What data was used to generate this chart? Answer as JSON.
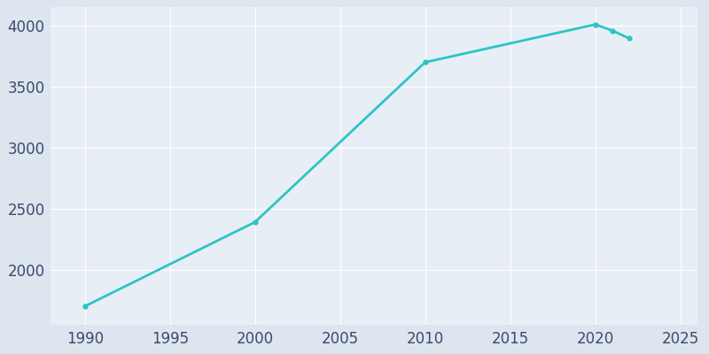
{
  "years": [
    1990,
    2000,
    2010,
    2020,
    2021,
    2022
  ],
  "population": [
    1700,
    2390,
    3700,
    4010,
    3960,
    3895
  ],
  "line_color": "#2EC4C4",
  "marker": "o",
  "marker_size": 3.5,
  "background_color": "#DDE5EF",
  "plot_bg_color": "#E8EEF6",
  "grid_color": "#ffffff",
  "xlim": [
    1988,
    2026
  ],
  "ylim": [
    1550,
    4150
  ],
  "xticks": [
    1990,
    1995,
    2000,
    2005,
    2010,
    2015,
    2020,
    2025
  ],
  "yticks": [
    2000,
    2500,
    3000,
    3500,
    4000
  ],
  "tick_color": "#3C4A6E",
  "tick_fontsize": 12
}
